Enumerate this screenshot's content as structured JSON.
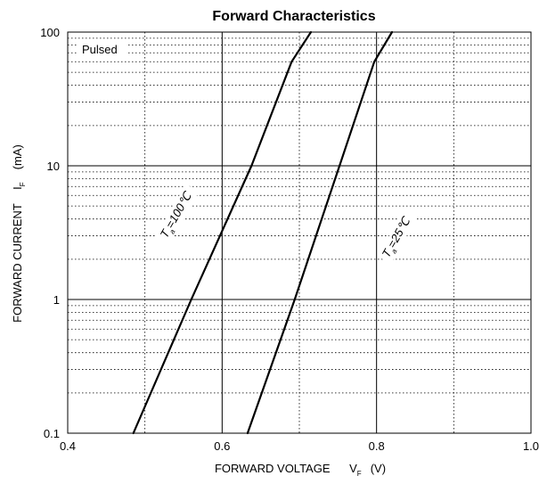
{
  "chart_data": {
    "type": "line",
    "title": "Forward   Characteristics",
    "xlabel": "FORWARD VOLTAGE",
    "xlabel_subscript_symbol": "V",
    "xlabel_subscript": "F",
    "xlabel_unit": "(V)",
    "ylabel": "FORWARD CURRENT",
    "ylabel_symbol": "I",
    "ylabel_subscript": "F",
    "ylabel_unit": "(mA)",
    "xlim": [
      0.4,
      1.0
    ],
    "ylim": [
      0.1,
      100
    ],
    "yscale": "log",
    "x_ticks": [
      "0.4",
      "0.6",
      "0.8",
      "1.0"
    ],
    "y_ticks": [
      "0.1",
      "1",
      "10",
      "100"
    ],
    "grid": true,
    "annotation": "Pulsed",
    "series": [
      {
        "name": "Ta=100°C",
        "label_main": "T",
        "label_sub": "a",
        "label_rest": "=100℃",
        "x": [
          0.485,
          0.56,
          0.638,
          0.69,
          0.715
        ],
        "y": [
          0.1,
          1.0,
          10.0,
          60.0,
          100.0
        ]
      },
      {
        "name": "Ta=25°C",
        "label_main": "T",
        "label_sub": "a",
        "label_rest": "=25℃",
        "x": [
          0.633,
          0.694,
          0.752,
          0.797,
          0.82
        ],
        "y": [
          0.1,
          1.0,
          10.0,
          60.0,
          100.0
        ]
      }
    ]
  }
}
